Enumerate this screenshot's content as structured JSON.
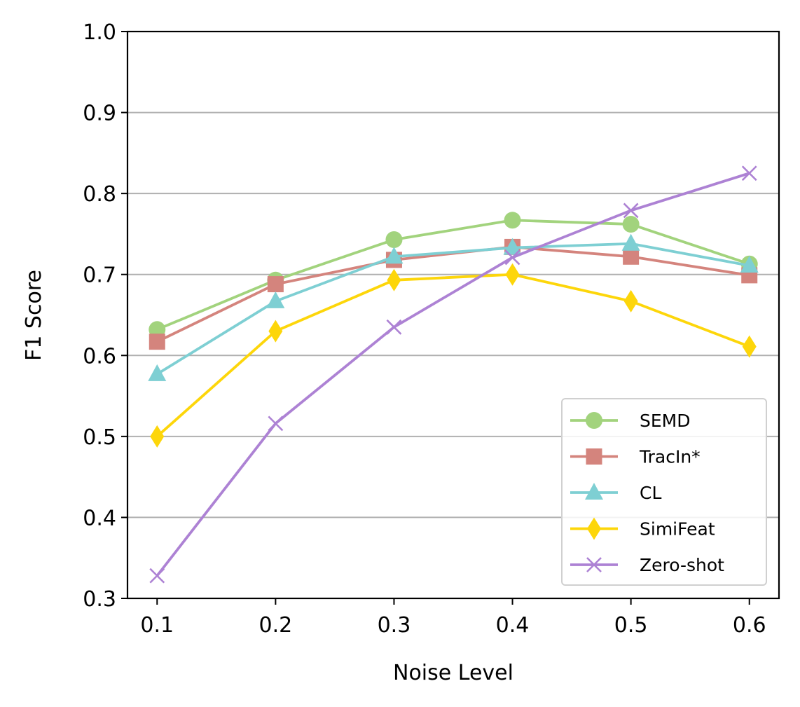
{
  "chart_data": {
    "type": "line",
    "title": "",
    "xlabel": "Noise Level",
    "ylabel": "F1 Score",
    "x": [
      0.1,
      0.2,
      0.3,
      0.4,
      0.5,
      0.6
    ],
    "x_tick_labels": [
      "0.1",
      "0.2",
      "0.3",
      "0.4",
      "0.5",
      "0.6"
    ],
    "xlim": [
      0.075,
      0.625
    ],
    "ylim": [
      0.3,
      1.0
    ],
    "y_ticks": [
      0.3,
      0.4,
      0.5,
      0.6,
      0.7,
      0.8,
      0.9,
      1.0
    ],
    "y_tick_labels": [
      "0.3",
      "0.4",
      "0.5",
      "0.6",
      "0.7",
      "0.8",
      "0.9",
      "1.0"
    ],
    "grid": "horizontal",
    "legend_position": "lower-right",
    "series": [
      {
        "name": "SEMD",
        "color": "#a2d37d",
        "marker": "circle",
        "values": [
          0.632,
          0.693,
          0.743,
          0.767,
          0.762,
          0.713
        ]
      },
      {
        "name": "TracIn*",
        "color": "#d4847d",
        "marker": "square",
        "values": [
          0.617,
          0.688,
          0.718,
          0.734,
          0.722,
          0.699
        ]
      },
      {
        "name": "CL",
        "color": "#7ecfd3",
        "marker": "triangle",
        "values": [
          0.577,
          0.667,
          0.722,
          0.733,
          0.738,
          0.711
        ]
      },
      {
        "name": "SimiFeat",
        "color": "#fdd60a",
        "marker": "diamond",
        "values": [
          0.5,
          0.63,
          0.693,
          0.7,
          0.667,
          0.611
        ]
      },
      {
        "name": "Zero-shot",
        "color": "#ad82d4",
        "marker": "x",
        "values": [
          0.328,
          0.516,
          0.635,
          0.721,
          0.779,
          0.825
        ]
      }
    ]
  }
}
